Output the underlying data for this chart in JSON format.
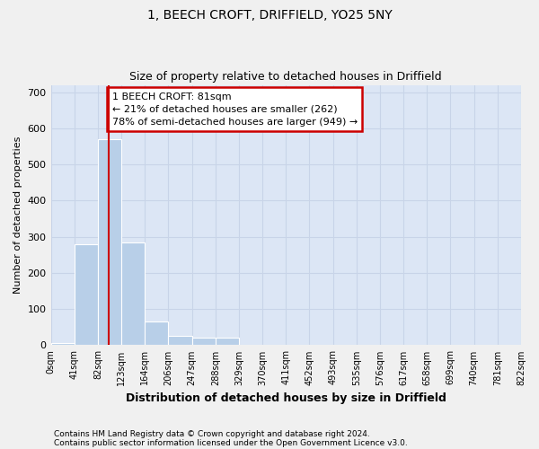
{
  "title1": "1, BEECH CROFT, DRIFFIELD, YO25 5NY",
  "title2": "Size of property relative to detached houses in Driffield",
  "xlabel": "Distribution of detached houses by size in Driffield",
  "ylabel": "Number of detached properties",
  "footnote1": "Contains HM Land Registry data © Crown copyright and database right 2024.",
  "footnote2": "Contains public sector information licensed under the Open Government Licence v3.0.",
  "bin_labels": [
    "0sqm",
    "41sqm",
    "82sqm",
    "123sqm",
    "164sqm",
    "206sqm",
    "247sqm",
    "288sqm",
    "329sqm",
    "370sqm",
    "411sqm",
    "452sqm",
    "493sqm",
    "535sqm",
    "576sqm",
    "617sqm",
    "658sqm",
    "699sqm",
    "740sqm",
    "781sqm",
    "822sqm"
  ],
  "bar_heights": [
    5,
    280,
    570,
    285,
    65,
    25,
    20,
    20,
    0,
    0,
    0,
    0,
    0,
    0,
    0,
    0,
    0,
    0,
    0,
    0
  ],
  "bar_color": "#b8cfe8",
  "grid_color": "#c8d4e8",
  "background_color": "#dce6f5",
  "figure_color": "#f0f0f0",
  "red_line_x": 1.98,
  "annotation_text": "1 BEECH CROFT: 81sqm\n← 21% of detached houses are smaller (262)\n78% of semi-detached houses are larger (949) →",
  "annotation_box_color": "#ffffff",
  "annotation_border_color": "#cc0000",
  "ylim": [
    0,
    720
  ],
  "yticks": [
    0,
    100,
    200,
    300,
    400,
    500,
    600,
    700
  ]
}
